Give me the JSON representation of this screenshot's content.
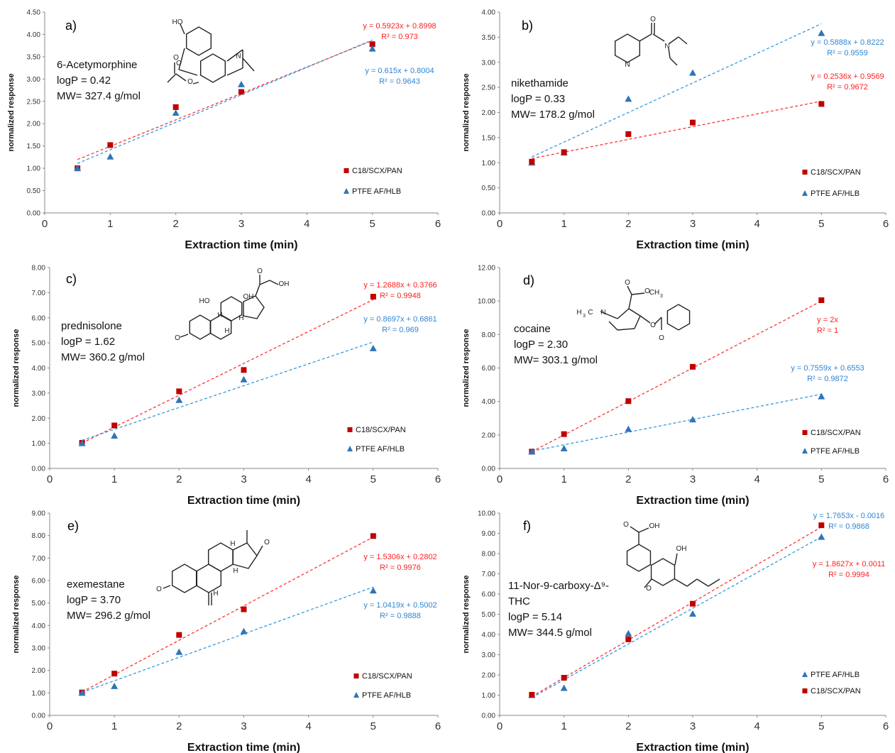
{
  "colors": {
    "C18/SCX/PAN": "#c00000",
    "PTFE AF/HLB": "#2e75b6",
    "trend_c18": "#ff3333",
    "trend_ptfe": "#3399dd",
    "eq_c18": "#ff2020",
    "eq_ptfe": "#2f86d1"
  },
  "chart_data": [
    {
      "id": "a",
      "type": "scatter",
      "label": "a)",
      "info": [
        "6-Acetymorphine",
        "logP = 0.42",
        "MW=  327.4 g/mol"
      ],
      "xlabel": "Extraction  time (min)",
      "ylabel": "normalized response",
      "xlim": [
        0,
        6
      ],
      "xticks": [
        "0",
        "1",
        "2",
        "3",
        "4",
        "5",
        "6"
      ],
      "ylim": [
        0,
        4.5
      ],
      "yticks": [
        "0.00",
        "0.50",
        "1.00",
        "1.50",
        "2.00",
        "2.50",
        "3.00",
        "3.50",
        "4.00",
        "4.50"
      ],
      "legend": [
        "C18/SCX/PAN",
        "PTFE AF/HLB"
      ],
      "series": [
        {
          "name": "C18/SCX/PAN",
          "marker": "square",
          "x": [
            0.5,
            1,
            2,
            3,
            5
          ],
          "y": [
            1.0,
            1.52,
            2.37,
            2.71,
            3.78
          ],
          "trend": {
            "slope": 0.5923,
            "intercept": 0.8998
          },
          "equation": "y = 0.5923x + 0.8998",
          "r2": "R² = 0.973"
        },
        {
          "name": "PTFE AF/HLB",
          "marker": "triangle",
          "x": [
            0.5,
            1,
            2,
            3,
            5
          ],
          "y": [
            1.0,
            1.26,
            2.24,
            2.88,
            3.68
          ],
          "trend": {
            "slope": 0.615,
            "intercept": 0.8004
          },
          "equation": "y = 0.615x + 0.8004",
          "r2": "R² = 0.9643"
        }
      ]
    },
    {
      "id": "b",
      "type": "scatter",
      "label": "b)",
      "info": [
        "nikethamide",
        "logP = 0.33",
        "MW=  178.2 g/mol"
      ],
      "xlabel": "Extraction  time (min)",
      "ylabel": "normalized response",
      "xlim": [
        0,
        6
      ],
      "xticks": [
        "0",
        "1",
        "2",
        "3",
        "4",
        "5",
        "6"
      ],
      "ylim": [
        0,
        4.0
      ],
      "yticks": [
        "0.00",
        "0.50",
        "1.00",
        "1.50",
        "2.00",
        "2.50",
        "3.00",
        "3.50",
        "4.00"
      ],
      "legend": [
        "C18/SCX/PAN",
        "PTFE AF/HLB"
      ],
      "series": [
        {
          "name": "PTFE AF/HLB",
          "marker": "triangle",
          "x": [
            0.5,
            1,
            2,
            3,
            5
          ],
          "y": [
            1.0,
            1.2,
            2.27,
            2.79,
            3.58
          ],
          "trend": {
            "slope": 0.5888,
            "intercept": 0.8222
          },
          "equation": "y = 0.5888x + 0.8222",
          "r2": "R² = 0.9559"
        },
        {
          "name": "C18/SCX/PAN",
          "marker": "square",
          "x": [
            0.5,
            1,
            2,
            3,
            5
          ],
          "y": [
            1.02,
            1.21,
            1.57,
            1.8,
            2.17
          ],
          "trend": {
            "slope": 0.2536,
            "intercept": 0.9569
          },
          "equation": "y = 0.2536x + 0.9569",
          "r2": "R² = 0.9672"
        }
      ]
    },
    {
      "id": "c",
      "type": "scatter",
      "label": "c)",
      "info": [
        "prednisolone",
        "logP = 1.62",
        "MW=  360.2 g/mol"
      ],
      "xlabel": "Extraction  time (min)",
      "ylabel": "normalized response",
      "xlim": [
        0,
        6
      ],
      "xticks": [
        "0",
        "1",
        "2",
        "3",
        "4",
        "5",
        "6"
      ],
      "ylim": [
        0,
        8.0
      ],
      "yticks": [
        "0.00",
        "1.00",
        "2.00",
        "3.00",
        "4.00",
        "5.00",
        "6.00",
        "7.00",
        "8.00"
      ],
      "legend": [
        "C18/SCX/PAN",
        "PTFE AF/HLB"
      ],
      "series": [
        {
          "name": "C18/SCX/PAN",
          "marker": "square",
          "x": [
            0.5,
            1,
            2,
            3,
            5
          ],
          "y": [
            1.02,
            1.71,
            3.07,
            3.92,
            6.84
          ],
          "trend": {
            "slope": 1.2688,
            "intercept": 0.3766
          },
          "equation": "y = 1.2688x + 0.3766",
          "r2": "R² = 0.9948"
        },
        {
          "name": "PTFE AF/HLB",
          "marker": "triangle",
          "x": [
            0.5,
            1,
            2,
            3,
            5
          ],
          "y": [
            1.0,
            1.3,
            2.72,
            3.54,
            4.78
          ],
          "trend": {
            "slope": 0.8697,
            "intercept": 0.6861
          },
          "equation": "y = 0.8697x + 0.6861",
          "r2": "R² = 0.969"
        }
      ]
    },
    {
      "id": "d",
      "type": "scatter",
      "label": "d)",
      "info": [
        "cocaine",
        "logP = 2.30",
        "MW=  303.1 g/mol"
      ],
      "xlabel": "Extraction  time (min)",
      "ylabel": "normalized response",
      "xlim": [
        0,
        6
      ],
      "xticks": [
        "0",
        "1",
        "2",
        "3",
        "4",
        "5",
        "6"
      ],
      "ylim": [
        0,
        12.0
      ],
      "yticks": [
        "0.00",
        "2.00",
        "4.00",
        "6.00",
        "8.00",
        "10.00",
        "12.00"
      ],
      "legend": [
        "C18/SCX/PAN",
        "PTFE AF/HLB"
      ],
      "series": [
        {
          "name": "C18/SCX/PAN",
          "marker": "square",
          "x": [
            0.5,
            1,
            2,
            3,
            5
          ],
          "y": [
            1.0,
            2.05,
            4.02,
            6.07,
            10.05
          ],
          "trend": {
            "slope": 2.0,
            "intercept": 0.0
          },
          "equation": "y = 2x",
          "r2": "R² = 1"
        },
        {
          "name": "PTFE AF/HLB",
          "marker": "triangle",
          "x": [
            0.5,
            1,
            2,
            3,
            5
          ],
          "y": [
            1.0,
            1.19,
            2.35,
            2.92,
            4.3
          ],
          "trend": {
            "slope": 0.7559,
            "intercept": 0.6553
          },
          "equation": "y = 0.7559x + 0.6553",
          "r2": "R² = 0.9872"
        }
      ]
    },
    {
      "id": "e",
      "type": "scatter",
      "label": "e)",
      "info": [
        "exemestane",
        "logP = 3.70",
        "MW=  296.2 g/mol"
      ],
      "xlabel": "Extraction  time (min)",
      "ylabel": "normalized response",
      "xlim": [
        0,
        6
      ],
      "xticks": [
        "0",
        "1",
        "2",
        "3",
        "4",
        "5",
        "6"
      ],
      "ylim": [
        0,
        9.0
      ],
      "yticks": [
        "0.00",
        "1.00",
        "2.00",
        "3.00",
        "4.00",
        "5.00",
        "6.00",
        "7.00",
        "8.00",
        "9.00"
      ],
      "legend": [
        "C18/SCX/PAN",
        "PTFE AF/HLB"
      ],
      "series": [
        {
          "name": "C18/SCX/PAN",
          "marker": "square",
          "x": [
            0.5,
            1,
            2,
            3,
            5
          ],
          "y": [
            1.02,
            1.86,
            3.58,
            4.72,
            7.98
          ],
          "trend": {
            "slope": 1.5306,
            "intercept": 0.2802
          },
          "equation": "y = 1.5306x + 0.2802",
          "r2": "R² = 0.9976"
        },
        {
          "name": "PTFE AF/HLB",
          "marker": "triangle",
          "x": [
            0.5,
            1,
            2,
            3,
            5
          ],
          "y": [
            1.0,
            1.3,
            2.82,
            3.74,
            5.55
          ],
          "trend": {
            "slope": 1.0419,
            "intercept": 0.5002
          },
          "equation": "y = 1.0419x + 0.5002",
          "r2": "R² = 0.9888"
        }
      ]
    },
    {
      "id": "f",
      "type": "scatter",
      "label": "f)",
      "info": [
        "11-Nor-9-carboxy-Δ⁹-",
        "THC",
        "logP = 5.14",
        "MW=  344.5 g/mol"
      ],
      "xlabel": "Extraction  time (min)",
      "ylabel": "normalized response",
      "xlim": [
        0,
        6
      ],
      "xticks": [
        "0",
        "1",
        "2",
        "3",
        "4",
        "5",
        "6"
      ],
      "ylim": [
        0,
        10.0
      ],
      "yticks": [
        "0.00",
        "1.00",
        "2.00",
        "3.00",
        "4.00",
        "5.00",
        "6.00",
        "7.00",
        "8.00",
        "9.00",
        "10.00"
      ],
      "legend": [
        "PTFE AF/HLB",
        "C18/SCX/PAN"
      ],
      "series": [
        {
          "name": "PTFE AF/HLB",
          "marker": "triangle",
          "x": [
            0.5,
            1,
            2,
            3,
            5
          ],
          "y": [
            1.0,
            1.35,
            4.05,
            5.02,
            8.82
          ],
          "trend": {
            "slope": 1.7653,
            "intercept": -0.0016
          },
          "equation": "y = 1.7653x - 0.0016",
          "r2": "R² = 0.9868"
        },
        {
          "name": "C18/SCX/PAN",
          "marker": "square",
          "x": [
            0.5,
            1,
            2,
            3,
            5
          ],
          "y": [
            1.02,
            1.86,
            3.76,
            5.52,
            9.4
          ],
          "trend": {
            "slope": 1.8627,
            "intercept": 0.0011
          },
          "equation": "y = 1.8627x + 0.0011",
          "r2": "R² = 0.9994"
        }
      ]
    }
  ],
  "structures": {
    "a": {
      "labels": [
        "HO",
        "O",
        "O",
        "O",
        "N"
      ]
    },
    "b": {
      "labels": [
        "O",
        "N",
        "N"
      ]
    },
    "c": {
      "labels": [
        "O",
        "OH",
        "HO",
        "OH",
        "H",
        "H",
        "H",
        "O"
      ]
    },
    "d": {
      "labels": [
        "O",
        "CH",
        "3",
        "H",
        "3",
        "C",
        "N",
        "O",
        "O",
        "O"
      ]
    },
    "e": {
      "labels": [
        "O",
        "O",
        "H",
        "H",
        "H"
      ]
    },
    "f": {
      "labels": [
        "O",
        "OH",
        "OH",
        "O"
      ]
    }
  }
}
